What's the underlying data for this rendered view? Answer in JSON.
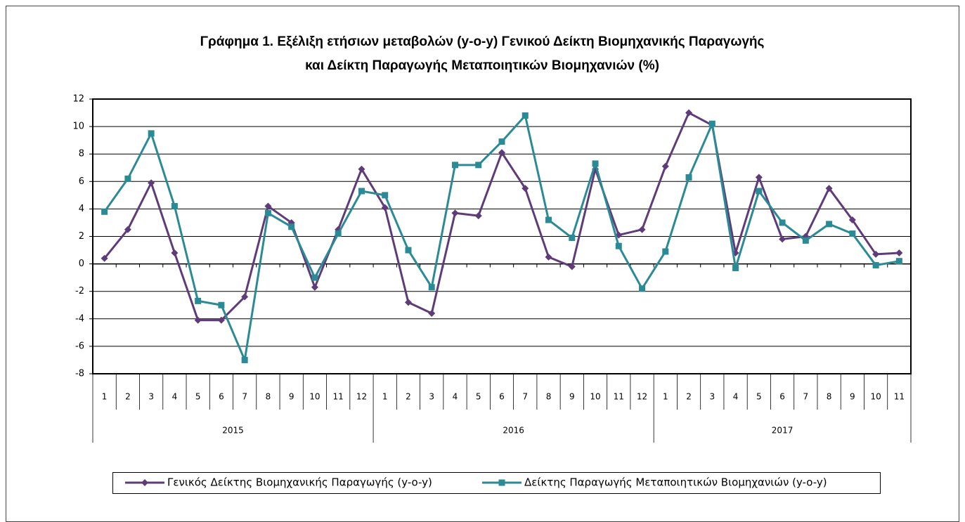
{
  "chart_data": {
    "type": "line",
    "title": [
      "Γράφημα 1. Εξέλιξη ετήσιων μεταβολών (y-o-y) Γενικού Δείκτη Βιομηχανικής Παραγωγής",
      "και Δείκτη Παραγωγής Μεταποιητικών Βιομηχανιών (%)"
    ],
    "categories": [
      "1",
      "2",
      "3",
      "4",
      "5",
      "6",
      "7",
      "8",
      "9",
      "10",
      "11",
      "12",
      "1",
      "2",
      "3",
      "4",
      "5",
      "6",
      "7",
      "8",
      "9",
      "10",
      "11",
      "12",
      "1",
      "2",
      "3",
      "4",
      "5",
      "6",
      "7",
      "8",
      "9",
      "10",
      "11"
    ],
    "groups": [
      "2015",
      "2016",
      "2017"
    ],
    "series": [
      {
        "name": "Γενικός Δείκτης Βιομηχανικής Παραγωγής (y-o-y)",
        "color": "#5f3b79",
        "marker": "diamond",
        "values": [
          0.4,
          2.5,
          5.9,
          0.8,
          -4.1,
          -4.1,
          -2.4,
          4.2,
          3.0,
          -1.7,
          2.5,
          6.9,
          4.1,
          -2.8,
          -3.6,
          3.7,
          3.5,
          8.1,
          5.5,
          0.5,
          -0.2,
          6.9,
          2.1,
          2.5,
          7.1,
          11.0,
          10.1,
          0.8,
          6.3,
          1.8,
          2.0,
          5.5,
          3.2,
          0.7,
          0.8
        ]
      },
      {
        "name": "Δείκτης Παραγωγής Μεταποιητικών Βιομηχανιών (y-o-y)",
        "color": "#2a8a96",
        "marker": "square",
        "values": [
          3.8,
          6.2,
          9.5,
          4.2,
          -2.7,
          -3.0,
          -7.0,
          3.7,
          2.7,
          -1.0,
          2.2,
          5.3,
          5.0,
          1.0,
          -1.7,
          7.2,
          7.2,
          8.9,
          10.8,
          3.2,
          1.9,
          7.3,
          1.3,
          -1.8,
          0.9,
          6.3,
          10.2,
          -0.3,
          5.3,
          3.0,
          1.7,
          2.9,
          2.2,
          -0.1,
          0.2
        ]
      }
    ],
    "ylim": [
      -8,
      12
    ],
    "yticks": [
      -8,
      -6,
      -4,
      -2,
      0,
      2,
      4,
      6,
      8,
      10,
      12
    ],
    "grid": true,
    "legend": "bottom"
  }
}
